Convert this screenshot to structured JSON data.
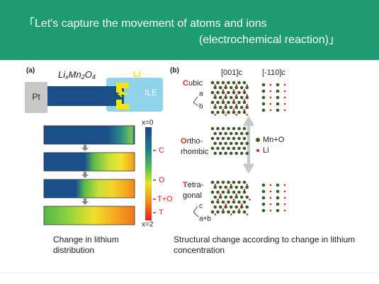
{
  "header": {
    "lines": [
      "「Let's capture the movement of atoms and ions",
      "(electrochemical reaction)」"
    ]
  },
  "panel_a": {
    "label": "(a)",
    "formula": [
      "Li",
      "x",
      "Mn",
      "2",
      "O",
      "4"
    ],
    "electrode": "Pt",
    "ion": "Li",
    "electrolyte": "ILE",
    "colorbar": {
      "top": "x=0",
      "bottom": "x=2",
      "phases": [
        "C",
        "O",
        "T+O",
        "T"
      ]
    },
    "caption": [
      "Change in lithium",
      "distribution"
    ]
  },
  "panel_b": {
    "label": "(b)",
    "columns": [
      "[001]c",
      "[-110]c"
    ],
    "phases": [
      {
        "initial": "C",
        "lines": [
          "ubic"
        ],
        "axes": [
          "a",
          "b"
        ]
      },
      {
        "initial": "O",
        "lines": [
          "rtho-",
          "rhombic"
        ]
      },
      {
        "initial": "T",
        "lines": [
          "etra-",
          "gonal"
        ],
        "axes": [
          "c",
          "a+b"
        ]
      }
    ],
    "legend": [
      "Mn+O",
      "Li"
    ],
    "caption": [
      "Structural change according to change in lithium",
      "concentration"
    ]
  }
}
